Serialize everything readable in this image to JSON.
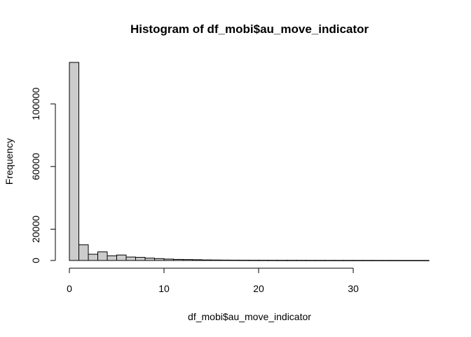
{
  "chart_data": {
    "type": "bar",
    "title": "Histogram of df_mobi$au_move_indicator",
    "xlabel": "df_mobi$au_move_indicator",
    "ylabel": "Frequency",
    "bar_color": "#cccccc",
    "edge_color": "#000000",
    "xlim": [
      0,
      38
    ],
    "ylim": [
      0,
      126000
    ],
    "x_ticks": [
      0,
      10,
      20,
      30
    ],
    "y_ticks": [
      0,
      20000,
      60000,
      100000
    ],
    "bins": [
      [
        0,
        1,
        126500
      ],
      [
        1,
        2,
        10000
      ],
      [
        2,
        3,
        4000
      ],
      [
        3,
        4,
        5500
      ],
      [
        4,
        5,
        3000
      ],
      [
        5,
        6,
        3500
      ],
      [
        6,
        7,
        2200
      ],
      [
        7,
        8,
        2000
      ],
      [
        8,
        9,
        1500
      ],
      [
        9,
        10,
        1200
      ],
      [
        10,
        11,
        900
      ],
      [
        11,
        12,
        700
      ],
      [
        12,
        13,
        600
      ],
      [
        13,
        14,
        500
      ],
      [
        14,
        15,
        350
      ],
      [
        15,
        16,
        300
      ],
      [
        16,
        17,
        250
      ],
      [
        17,
        18,
        200
      ],
      [
        18,
        19,
        170
      ],
      [
        19,
        20,
        150
      ],
      [
        20,
        21,
        130
      ],
      [
        21,
        22,
        110
      ],
      [
        22,
        23,
        100
      ],
      [
        23,
        24,
        90
      ],
      [
        24,
        25,
        80
      ],
      [
        25,
        26,
        70
      ],
      [
        26,
        27,
        60
      ],
      [
        27,
        28,
        55
      ],
      [
        28,
        29,
        50
      ],
      [
        29,
        30,
        45
      ],
      [
        30,
        31,
        40
      ],
      [
        31,
        32,
        35
      ],
      [
        32,
        33,
        30
      ],
      [
        33,
        34,
        25
      ],
      [
        34,
        35,
        20
      ],
      [
        35,
        36,
        15
      ],
      [
        36,
        37,
        10
      ],
      [
        37,
        38,
        8
      ]
    ]
  }
}
